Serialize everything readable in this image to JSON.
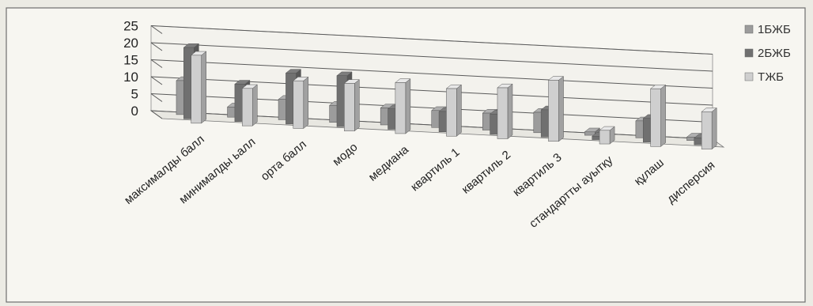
{
  "chart_data": {
    "type": "bar",
    "title": "",
    "xlabel": "",
    "ylabel": "",
    "ylim": [
      0,
      25
    ],
    "yticks": [
      0,
      5,
      10,
      15,
      20,
      25
    ],
    "grid": true,
    "legend_position": "right",
    "categories": [
      "максималды балл",
      "минималды ьалл",
      "орта балл",
      "модо",
      "медиана",
      "квартиль 1",
      "квартиль 2",
      "квартиль 3",
      "стандартты ауытқу",
      "құлаш",
      "дисперсия"
    ],
    "series": [
      {
        "name": "1БЖБ",
        "color": "#9c9c9c",
        "values": [
          10,
          3,
          6,
          5,
          5,
          5,
          5,
          6,
          1,
          5,
          1
        ]
      },
      {
        "name": "2БЖБ",
        "color": "#707070",
        "values": [
          21,
          11,
          15,
          15,
          6,
          6,
          6,
          8,
          1,
          7,
          2
        ]
      },
      {
        "name": "ТЖБ",
        "color": "#cfcfcf",
        "values": [
          20,
          11,
          14,
          14,
          15,
          14,
          15,
          18,
          4,
          17,
          11
        ]
      }
    ]
  }
}
